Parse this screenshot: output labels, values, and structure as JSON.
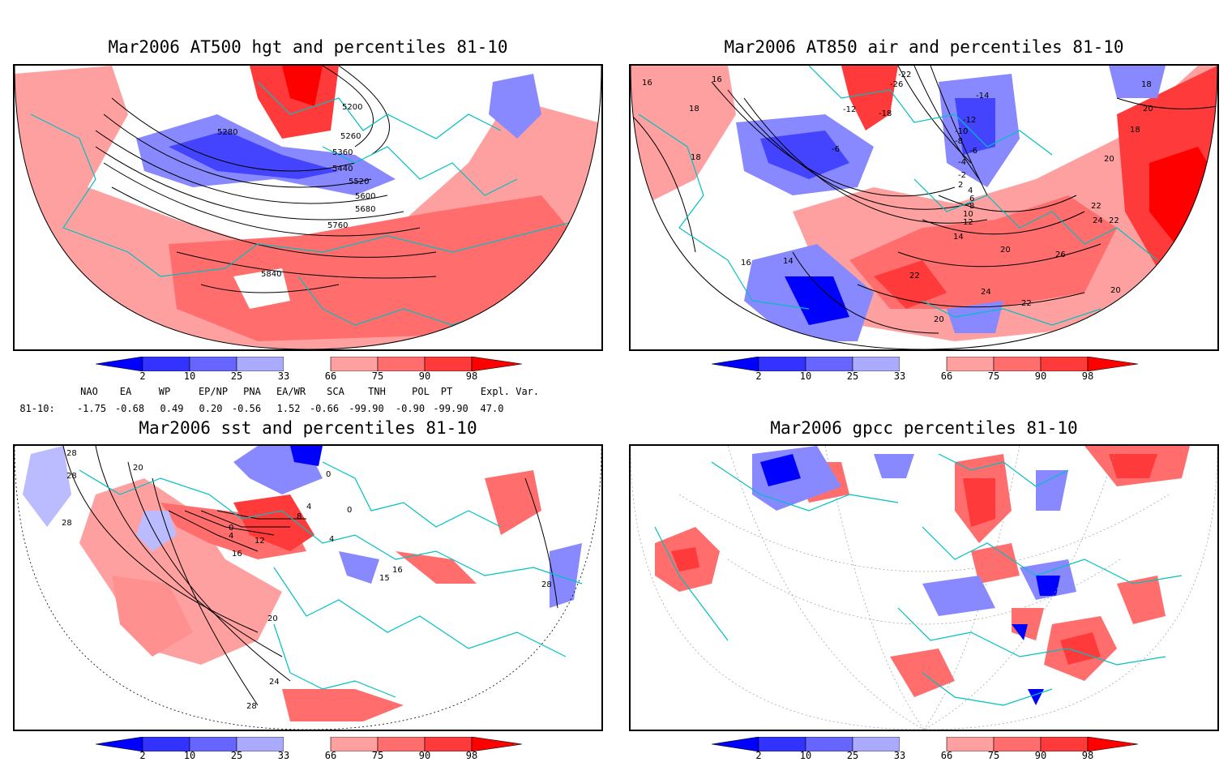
{
  "colors": {
    "ocean_blue_dark": "#0000ff",
    "blue_mid": "#4444ff",
    "blue_light": "#8888ff",
    "blue_pale": "#bbbbff",
    "red_pale": "#ffa0a0",
    "red_light": "#ff6d6d",
    "red_mid": "#ff3a3a",
    "red_dark": "#ff0000",
    "coast": "#00c0c0"
  },
  "panels": [
    {
      "id": "hgt500",
      "title": "Mar2006 AT500 hgt and percentiles 81-10",
      "contour_labels": [
        "5200",
        "5280",
        "5260",
        "5360",
        "5440",
        "5520",
        "5600",
        "5680",
        "5760",
        "5840"
      ]
    },
    {
      "id": "air850",
      "title": "Mar2006 AT850 air and percentiles 81-10",
      "contour_labels": [
        "-22",
        "-26",
        "-18",
        "-12",
        "-14",
        "-12",
        "-10",
        "-8",
        "-6",
        "-6",
        "-4",
        "-2",
        "2",
        "4",
        "6",
        "8",
        "10",
        "12",
        "14",
        "16",
        "18",
        "18",
        "16",
        "18",
        "20",
        "18",
        "20",
        "20",
        "22",
        "24",
        "22",
        "26",
        "22",
        "24",
        "22",
        "20",
        "20",
        "14",
        "16"
      ]
    },
    {
      "id": "sst",
      "title": "Mar2006 sst and percentiles 81-10",
      "contour_labels": [
        "28",
        "28",
        "20",
        "0",
        "0",
        "4",
        "4",
        "8",
        "12",
        "16",
        "28",
        "15",
        "16",
        "20",
        "24",
        "28",
        "0",
        "4",
        "28"
      ]
    },
    {
      "id": "gpcc",
      "title": "Mar2006 gpcc percentiles 81-10",
      "contour_labels": []
    }
  ],
  "colorbar": {
    "labels": [
      "2",
      "10",
      "25",
      "33",
      "66",
      "75",
      "90",
      "98"
    ]
  },
  "indices": {
    "row_label": "81-10:",
    "headers": [
      "NAO",
      "EA",
      "WP",
      "EP/NP",
      "PNA",
      "EA/WR",
      "SCA",
      "TNH",
      "POL",
      "PT",
      "Expl. Var."
    ],
    "values": [
      "-1.75",
      "-0.68",
      "0.49",
      "0.20",
      "-0.56",
      "1.52",
      "-0.66",
      "-99.90",
      "-0.90",
      "-99.90",
      "47.0"
    ]
  }
}
